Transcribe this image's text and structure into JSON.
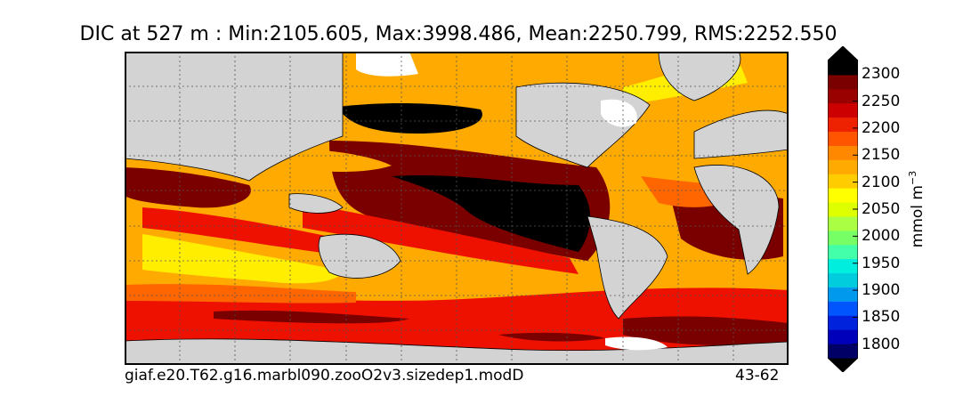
{
  "title": "DIC at 527 m : Min:2105.605, Max:3998.486, Mean:2250.799, RMS:2252.550",
  "run_name": "giaf.e20.T62.g16.marbl090.zooO2v3.sizedep1.modD",
  "years": "43-62",
  "colorbar": {
    "units": "mmol m",
    "units_exponent": "−3",
    "extend": "both",
    "ticks": [
      "1800",
      "1850",
      "1900",
      "1950",
      "2000",
      "2050",
      "2100",
      "2150",
      "2200",
      "2250",
      "2300"
    ],
    "levels": [
      1775,
      1800,
      1825,
      1850,
      1875,
      1900,
      1925,
      1950,
      1975,
      2000,
      2025,
      2050,
      2075,
      2100,
      2125,
      2150,
      2175,
      2200,
      2225,
      2250,
      2275,
      2300,
      2325
    ],
    "colors": [
      "#000066",
      "#0000bb",
      "#0022dd",
      "#0055ff",
      "#0099ee",
      "#00ccdd",
      "#00eedd",
      "#44ffaa",
      "#77ff66",
      "#aaff44",
      "#ddff00",
      "#ffff00",
      "#ffcc00",
      "#ffaa00",
      "#ff8800",
      "#ff5500",
      "#ee2200",
      "#cc0000",
      "#990000",
      "#7a0000",
      "#000000"
    ],
    "under_color": "#000000",
    "over_color": "#000000"
  },
  "map_colors": {
    "land": "#d3d3d3",
    "no_data": "#ffffff",
    "band_2150": "#ffee00",
    "band_2200": "#ffaa00",
    "band_2250": "#ff6600",
    "band_2300": "#ee1100",
    "band_2325": "#7a0000",
    "band_above": "#000000"
  }
}
